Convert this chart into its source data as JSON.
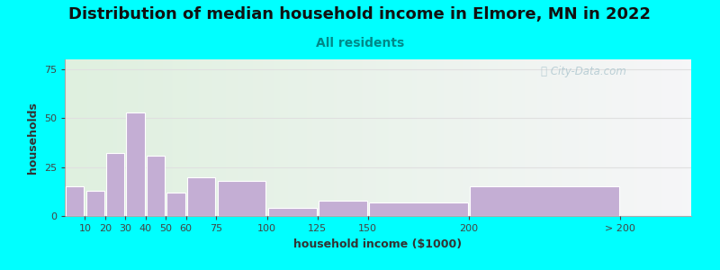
{
  "title": "Distribution of median household income in Elmore, MN in 2022",
  "subtitle": "All residents",
  "xlabel": "household income ($1000)",
  "ylabel": "households",
  "background_color": "#00FFFF",
  "bar_color": "#c4aed4",
  "bar_edge_color": "#ffffff",
  "bar_left_edges": [
    0,
    10,
    20,
    30,
    40,
    50,
    60,
    75,
    100,
    125,
    150,
    200
  ],
  "bar_widths": [
    10,
    10,
    10,
    10,
    10,
    10,
    15,
    25,
    25,
    25,
    50,
    75
  ],
  "values": [
    15,
    13,
    32,
    53,
    31,
    12,
    20,
    18,
    4,
    8,
    7,
    15
  ],
  "xtick_positions": [
    10,
    20,
    30,
    40,
    50,
    60,
    75,
    100,
    125,
    150,
    200,
    275
  ],
  "xtick_labels": [
    "10",
    "20",
    "30",
    "40",
    "50",
    "60",
    "75",
    "100",
    "125",
    "150",
    "200",
    "> 200"
  ],
  "xlim": [
    0,
    310
  ],
  "ylim": [
    0,
    80
  ],
  "yticks": [
    0,
    25,
    50,
    75
  ],
  "title_fontsize": 13,
  "subtitle_fontsize": 10,
  "axis_label_fontsize": 9,
  "tick_fontsize": 8,
  "watermark_text": "City-Data.com",
  "watermark_color": "#b0c8d0",
  "grid_color": "#e0e0e0",
  "spine_color": "#aaaaaa"
}
